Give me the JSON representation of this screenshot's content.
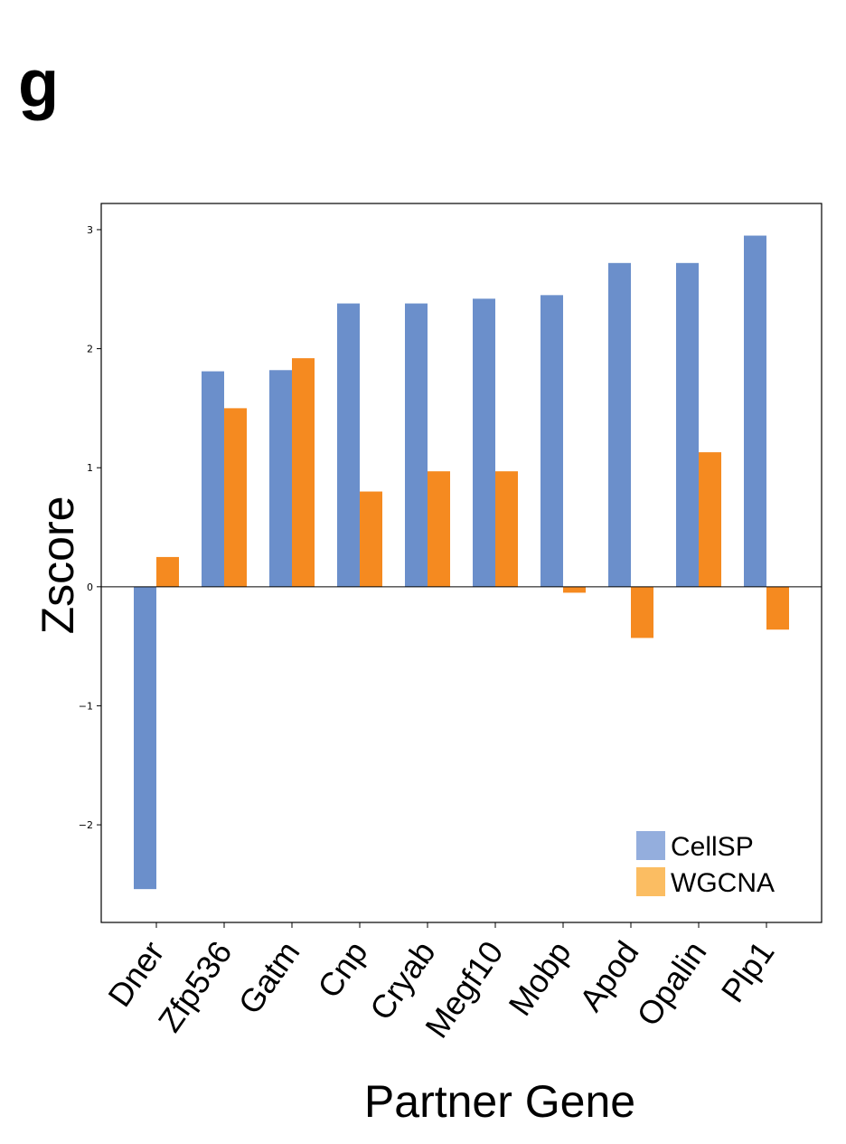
{
  "panel_label": "g",
  "chart_data": {
    "type": "bar",
    "categories": [
      "Dner",
      "Zfp536",
      "Gatm",
      "Cnp",
      "Cryab",
      "Megf10",
      "Mobp",
      "Apod",
      "Opalin",
      "Plp1"
    ],
    "series": [
      {
        "name": "CellSP",
        "color": "#6b8fcb",
        "values": [
          -2.54,
          1.81,
          1.82,
          2.38,
          2.38,
          2.42,
          2.45,
          2.72,
          2.72,
          2.95
        ]
      },
      {
        "name": "WGCNA",
        "color": "#f58a20",
        "values": [
          0.25,
          1.5,
          1.92,
          0.8,
          0.97,
          0.97,
          -0.05,
          -0.43,
          1.13,
          -0.36
        ]
      }
    ],
    "legend_colors": {
      "CellSP": "#94aedd",
      "WGCNA": "#fbbd62"
    },
    "title": "",
    "xlabel": "Partner Gene",
    "ylabel": "Zscore",
    "yticks": [
      3,
      2,
      1,
      0,
      -1,
      -2
    ],
    "ytick_labels": [
      "3",
      "2",
      "1",
      "0",
      "−1",
      "−2"
    ],
    "ylim": [
      -2.82,
      3.22
    ],
    "legend_position": "bottom-right",
    "grid": false
  }
}
